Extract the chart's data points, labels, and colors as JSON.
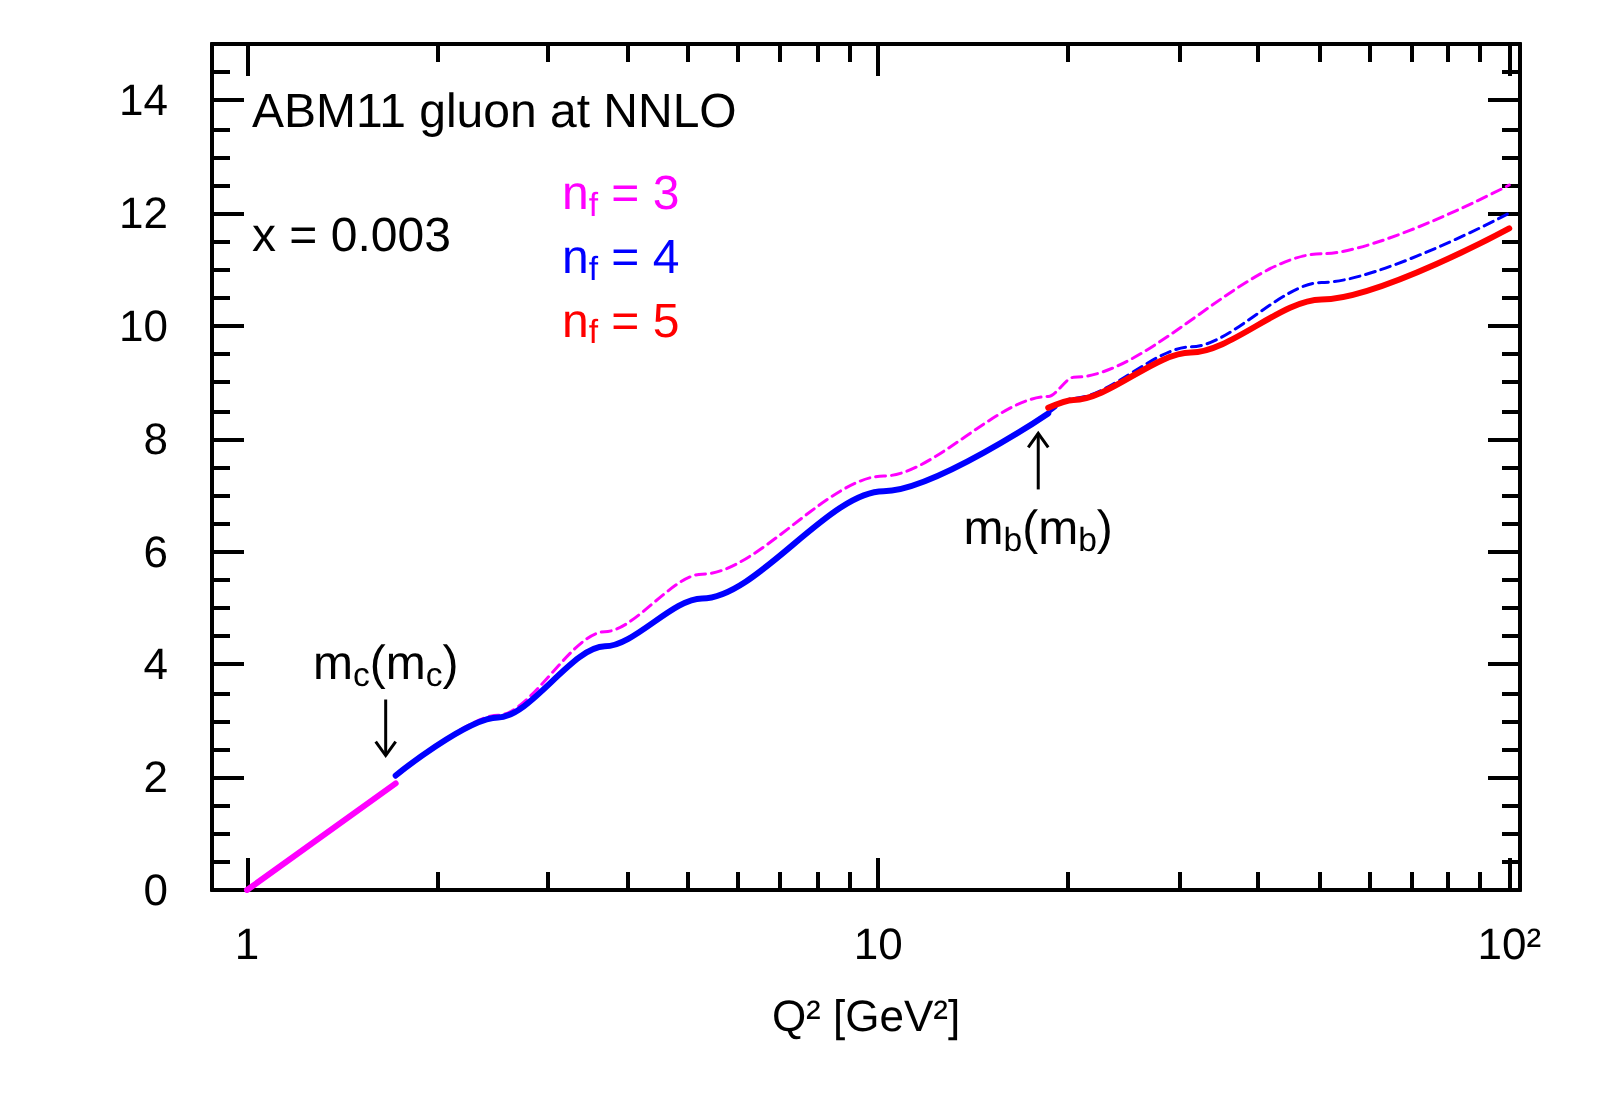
{
  "chart_data": {
    "type": "line",
    "log": "x",
    "marker": "none",
    "legend": "top left",
    "xlabel": "Q² [GeV²]",
    "xlim": [
      0.88,
      104
    ],
    "ylim": [
      0,
      15
    ],
    "xticks": [
      1,
      {
        "value": 2,
        "label": null
      },
      {
        "value": 3,
        "label": null
      },
      {
        "value": 4,
        "label": null
      },
      {
        "value": 5,
        "label": null
      },
      {
        "value": 6,
        "label": null
      },
      {
        "value": 7,
        "label": null
      },
      {
        "value": 8,
        "label": null
      },
      {
        "value": 9,
        "label": null
      },
      10,
      {
        "value": 20,
        "label": null
      },
      {
        "value": 30,
        "label": null
      },
      {
        "value": 40,
        "label": null
      },
      {
        "value": 50,
        "label": null
      },
      {
        "value": 60,
        "label": null
      },
      {
        "value": 70,
        "label": null
      },
      {
        "value": 80,
        "label": null
      },
      {
        "value": 90,
        "label": null
      },
      {
        "value": 100,
        "label": "10²"
      }
    ],
    "yticks": [
      0,
      {
        "value": 0.5,
        "label": null
      },
      {
        "value": 1,
        "label": null
      },
      {
        "value": 1.5,
        "label": null
      },
      2,
      {
        "value": 2.5,
        "label": null
      },
      {
        "value": 3,
        "label": null
      },
      {
        "value": 3.5,
        "label": null
      },
      4,
      {
        "value": 4.5,
        "label": null
      },
      {
        "value": 5,
        "label": null
      },
      {
        "value": 5.5,
        "label": null
      },
      6,
      {
        "value": 6.5,
        "label": null
      },
      {
        "value": 7,
        "label": null
      },
      {
        "value": 7.5,
        "label": null
      },
      8,
      {
        "value": 8.5,
        "label": null
      },
      {
        "value": 9,
        "label": null
      },
      {
        "value": 9.5,
        "label": null
      },
      10,
      {
        "value": 10.5,
        "label": null
      },
      {
        "value": 11,
        "label": null
      },
      {
        "value": 11.5,
        "label": null
      },
      12,
      {
        "value": 12.5,
        "label": null
      },
      {
        "value": 13,
        "label": null
      },
      {
        "value": 13.5,
        "label": null
      },
      14,
      {
        "value": 14.5,
        "label": null
      }
    ],
    "series": [
      {
        "name": "n$_{f}$ = 3",
        "color": "#ff00ff",
        "line_style": "solid",
        "x": [
          1,
          1.72
        ],
        "values": [
          0,
          1.89
        ]
      },
      {
        "color": "#ff00ff",
        "line_style": "dashed",
        "x": [
          1.72,
          2.5,
          3.69,
          5.26,
          10.2,
          18.6,
          20.4,
          50.4,
          100
        ],
        "values": [
          2.0,
          3.1,
          4.58,
          5.6,
          7.34,
          8.75,
          9.09,
          11.28,
          12.5
        ]
      },
      {
        "name": "n$_{f}$ = 4",
        "color": "#0000ff",
        "line_style": "solid",
        "x": [
          1.72,
          2.5,
          3.69,
          5.26,
          10.2,
          18.6
        ],
        "values": [
          2.03,
          3.06,
          4.32,
          5.17,
          7.07,
          8.45
        ]
      },
      {
        "color": "#0000ff",
        "line_style": "dashed",
        "x": [
          18.6,
          20.4,
          31.3,
          50.4,
          100
        ],
        "values": [
          8.45,
          8.72,
          9.63,
          10.77,
          12.0
        ]
      },
      {
        "name": "n$_{f}$ = 5",
        "color": "#ff0000",
        "line_style": "solid",
        "x": [
          18.6,
          20.4,
          31.3,
          50.4,
          100
        ],
        "values": [
          8.55,
          8.69,
          9.53,
          10.47,
          11.73
        ]
      }
    ],
    "annotations": [
      "ABM11 gluon at NNLO",
      "x = 0.003",
      {
        "text": "m$_{c}$(m$_{c}$)",
        "x": 1.72,
        "y": 2.03
      },
      {
        "text": "m$_{b}$(m$_{b}$)",
        "x": 18.6,
        "y": 8.45
      }
    ]
  }
}
